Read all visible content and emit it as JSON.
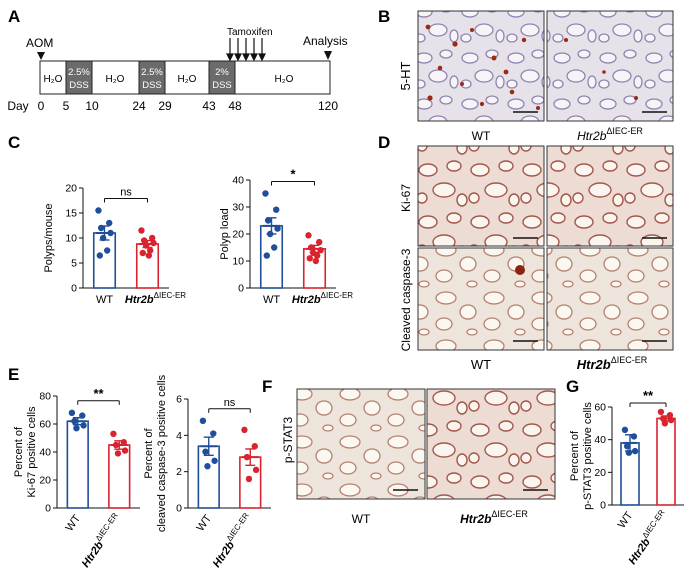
{
  "panels": {
    "A": {
      "letter": "A",
      "aom": "AOM",
      "tamoxifen": "Tamoxifen",
      "analysis": "Analysis",
      "day_label": "Day",
      "segments": [
        "H₂O",
        "2.5% DSS",
        "H₂O",
        "2.5% DSS",
        "H₂O",
        "2% DSS",
        "H₂O"
      ],
      "days": [
        "0",
        "5",
        "10",
        "24",
        "29",
        "43",
        "48",
        "120"
      ]
    },
    "B": {
      "letter": "B",
      "stain": "5-HT",
      "wt": "WT",
      "ko_main": "Htr2b",
      "ko_sup": "ΔIEC-ER"
    },
    "C": {
      "letter": "C"
    },
    "D": {
      "letter": "D",
      "stain1": "Ki-67",
      "stain2": "Cleaved caspase-3",
      "wt": "WT",
      "ko_main": "Htr2b",
      "ko_sup": "ΔIEC-ER"
    },
    "E": {
      "letter": "E"
    },
    "F": {
      "letter": "F",
      "stain": "p-STAT3",
      "wt": "WT",
      "ko_main": "Htr2b",
      "ko_sup": "ΔIEC-ER"
    },
    "G": {
      "letter": "G"
    }
  },
  "chart_data": [
    {
      "id": "polyps-mouse",
      "type": "bar",
      "ylabel": "Polyps/mouse",
      "ylim": [
        0,
        20
      ],
      "yticks": [
        0,
        5,
        10,
        15,
        20
      ],
      "categories": [
        "WT",
        "Htr2b ΔIEC-ER"
      ],
      "values": [
        11,
        8.8
      ],
      "errors": [
        1.4,
        0.7
      ],
      "points": [
        [
          15.5,
          13,
          12,
          11,
          10,
          7.5,
          6.5
        ],
        [
          11.5,
          10,
          9.5,
          9,
          8.5,
          7.5,
          7,
          6.5
        ]
      ],
      "significance": "ns"
    },
    {
      "id": "polyp-load",
      "type": "bar",
      "ylabel": "Polyp load",
      "ylim": [
        0,
        40
      ],
      "yticks": [
        0,
        10,
        20,
        30,
        40
      ],
      "categories": [
        "WT",
        "Htr2b ΔIEC-ER"
      ],
      "values": [
        23,
        14.5
      ],
      "errors": [
        3,
        1.3
      ],
      "points": [
        [
          35,
          29,
          25,
          22,
          20,
          15,
          12
        ],
        [
          19.5,
          17,
          15,
          14,
          13,
          12,
          11,
          10
        ]
      ],
      "significance": "*"
    },
    {
      "id": "ki67",
      "type": "bar",
      "ylabel": "Percent of Ki-67 positive cells",
      "ylim": [
        0,
        80
      ],
      "yticks": [
        0,
        20,
        40,
        60,
        80
      ],
      "categories": [
        "WT",
        "Htr2b ΔIEC-ER"
      ],
      "values": [
        62,
        45
      ],
      "errors": [
        2.5,
        3
      ],
      "points": [
        [
          68,
          66,
          62,
          59,
          57
        ],
        [
          53,
          47,
          45,
          41,
          39
        ]
      ],
      "significance": "**"
    },
    {
      "id": "caspase3",
      "type": "bar",
      "ylabel": "Percent of cleaved caspase-3 positive cells",
      "ylim": [
        0,
        6
      ],
      "yticks": [
        0,
        2,
        4,
        6
      ],
      "categories": [
        "WT",
        "Htr2b ΔIEC-ER"
      ],
      "values": [
        3.4,
        2.8
      ],
      "errors": [
        0.5,
        0.45
      ],
      "points": [
        [
          4.8,
          4.1,
          3.1,
          2.6,
          2.3
        ],
        [
          4.3,
          3.4,
          2.8,
          2.1,
          1.6
        ]
      ],
      "significance": "ns"
    },
    {
      "id": "pstat3",
      "type": "bar",
      "ylabel": "Percent of p-STAT3 positive cells",
      "ylim": [
        0,
        60
      ],
      "yticks": [
        0,
        20,
        40,
        60
      ],
      "categories": [
        "WT",
        "Htr2b ΔIEC-ER"
      ],
      "values": [
        38,
        53
      ],
      "errors": [
        5,
        1.5
      ],
      "points": [
        [
          46,
          42,
          36,
          33,
          32
        ],
        [
          57,
          55,
          53,
          52,
          50
        ]
      ],
      "significance": "**"
    }
  ],
  "colors": {
    "wt": "#1f4e9b",
    "ko": "#d9232e",
    "ko_fill": "#ffffff",
    "wt_fill": "#ffffff"
  }
}
